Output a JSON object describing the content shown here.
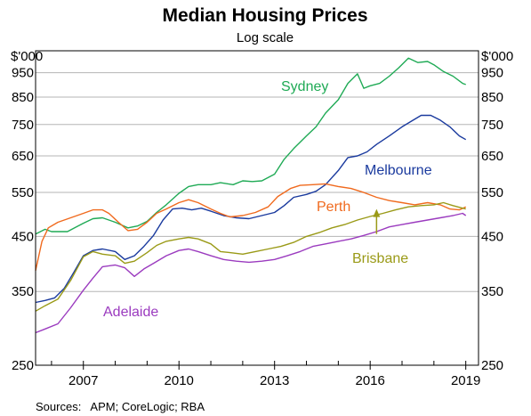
{
  "chart_data": {
    "type": "line",
    "title": "Median Housing Prices",
    "subtitle": "Log scale",
    "y_unit": "$'000",
    "y_scale": "log",
    "ylim": [
      250,
      1050
    ],
    "xlim": [
      2005.5,
      2019.4
    ],
    "y_ticks": [
      {
        "label": "950",
        "value": 950
      },
      {
        "label": "850",
        "value": 850
      },
      {
        "label": "750",
        "value": 750
      },
      {
        "label": "650",
        "value": 650
      },
      {
        "label": "550",
        "value": 550
      },
      {
        "label": "450",
        "value": 450
      },
      {
        "label": "350",
        "value": 350
      },
      {
        "label": "250",
        "value": 250
      }
    ],
    "x_tick_labels": [
      {
        "label": "2007",
        "value": 2007
      },
      {
        "label": "2010",
        "value": 2010
      },
      {
        "label": "2013",
        "value": 2013
      },
      {
        "label": "2016",
        "value": 2016
      },
      {
        "label": "2019",
        "value": 2019
      }
    ],
    "x_minor_ticks": [
      2006,
      2007,
      2008,
      2009,
      2010,
      2011,
      2012,
      2013,
      2014,
      2015,
      2016,
      2017,
      2018,
      2019
    ],
    "grid": true,
    "series": [
      {
        "name": "Sydney",
        "color": "#1faa55",
        "points": [
          [
            2005.5,
            455
          ],
          [
            2005.8,
            465
          ],
          [
            2006.0,
            460
          ],
          [
            2006.5,
            460
          ],
          [
            2007.0,
            478
          ],
          [
            2007.3,
            488
          ],
          [
            2007.6,
            490
          ],
          [
            2008.0,
            480
          ],
          [
            2008.4,
            468
          ],
          [
            2008.7,
            472
          ],
          [
            2009.0,
            482
          ],
          [
            2009.3,
            502
          ],
          [
            2009.6,
            520
          ],
          [
            2010.0,
            548
          ],
          [
            2010.3,
            565
          ],
          [
            2010.6,
            570
          ],
          [
            2011.0,
            570
          ],
          [
            2011.3,
            575
          ],
          [
            2011.7,
            570
          ],
          [
            2012.0,
            580
          ],
          [
            2012.3,
            578
          ],
          [
            2012.6,
            580
          ],
          [
            2013.0,
            598
          ],
          [
            2013.3,
            640
          ],
          [
            2013.6,
            672
          ],
          [
            2014.0,
            712
          ],
          [
            2014.3,
            742
          ],
          [
            2014.6,
            790
          ],
          [
            2015.0,
            840
          ],
          [
            2015.3,
            905
          ],
          [
            2015.6,
            945
          ],
          [
            2015.8,
            885
          ],
          [
            2016.0,
            895
          ],
          [
            2016.3,
            905
          ],
          [
            2016.6,
            935
          ],
          [
            2016.9,
            972
          ],
          [
            2017.2,
            1015
          ],
          [
            2017.5,
            995
          ],
          [
            2017.8,
            1000
          ],
          [
            2018.0,
            985
          ],
          [
            2018.3,
            955
          ],
          [
            2018.6,
            935
          ],
          [
            2018.9,
            905
          ],
          [
            2019.0,
            900
          ]
        ]
      },
      {
        "name": "Melbourne",
        "color": "#1a3a9e",
        "points": [
          [
            2005.5,
            333
          ],
          [
            2005.8,
            336
          ],
          [
            2006.1,
            340
          ],
          [
            2006.4,
            355
          ],
          [
            2006.7,
            382
          ],
          [
            2007.0,
            412
          ],
          [
            2007.3,
            422
          ],
          [
            2007.6,
            425
          ],
          [
            2008.0,
            420
          ],
          [
            2008.3,
            405
          ],
          [
            2008.6,
            412
          ],
          [
            2008.9,
            430
          ],
          [
            2009.2,
            452
          ],
          [
            2009.5,
            485
          ],
          [
            2009.8,
            510
          ],
          [
            2010.1,
            512
          ],
          [
            2010.4,
            508
          ],
          [
            2010.7,
            512
          ],
          [
            2011.0,
            505
          ],
          [
            2011.4,
            495
          ],
          [
            2011.8,
            490
          ],
          [
            2012.2,
            488
          ],
          [
            2012.6,
            495
          ],
          [
            2013.0,
            502
          ],
          [
            2013.3,
            518
          ],
          [
            2013.6,
            538
          ],
          [
            2014.0,
            545
          ],
          [
            2014.3,
            553
          ],
          [
            2014.6,
            570
          ],
          [
            2015.0,
            608
          ],
          [
            2015.3,
            645
          ],
          [
            2015.6,
            650
          ],
          [
            2015.9,
            662
          ],
          [
            2016.2,
            685
          ],
          [
            2016.6,
            712
          ],
          [
            2017.0,
            742
          ],
          [
            2017.3,
            762
          ],
          [
            2017.6,
            782
          ],
          [
            2017.9,
            782
          ],
          [
            2018.2,
            765
          ],
          [
            2018.5,
            742
          ],
          [
            2018.8,
            712
          ],
          [
            2019.0,
            700
          ]
        ]
      },
      {
        "name": "Perth",
        "color": "#f06a1e",
        "points": [
          [
            2005.5,
            385
          ],
          [
            2005.7,
            440
          ],
          [
            2005.9,
            468
          ],
          [
            2006.2,
            480
          ],
          [
            2006.6,
            490
          ],
          [
            2007.0,
            500
          ],
          [
            2007.3,
            508
          ],
          [
            2007.6,
            508
          ],
          [
            2007.8,
            500
          ],
          [
            2008.1,
            480
          ],
          [
            2008.4,
            462
          ],
          [
            2008.7,
            465
          ],
          [
            2009.0,
            480
          ],
          [
            2009.3,
            500
          ],
          [
            2009.6,
            510
          ],
          [
            2010.0,
            525
          ],
          [
            2010.3,
            532
          ],
          [
            2010.6,
            525
          ],
          [
            2011.0,
            510
          ],
          [
            2011.3,
            500
          ],
          [
            2011.6,
            492
          ],
          [
            2012.0,
            495
          ],
          [
            2012.4,
            502
          ],
          [
            2012.8,
            515
          ],
          [
            2013.1,
            540
          ],
          [
            2013.5,
            560
          ],
          [
            2013.8,
            568
          ],
          [
            2014.2,
            570
          ],
          [
            2014.6,
            572
          ],
          [
            2015.0,
            565
          ],
          [
            2015.4,
            560
          ],
          [
            2015.8,
            550
          ],
          [
            2016.2,
            538
          ],
          [
            2016.6,
            530
          ],
          [
            2017.0,
            525
          ],
          [
            2017.4,
            520
          ],
          [
            2017.8,
            525
          ],
          [
            2018.2,
            520
          ],
          [
            2018.5,
            510
          ],
          [
            2018.8,
            508
          ],
          [
            2019.0,
            515
          ]
        ]
      },
      {
        "name": "Brisbane",
        "color": "#9a9a17",
        "points": [
          [
            2005.5,
            320
          ],
          [
            2005.8,
            328
          ],
          [
            2006.2,
            338
          ],
          [
            2006.6,
            368
          ],
          [
            2007.0,
            410
          ],
          [
            2007.3,
            420
          ],
          [
            2007.6,
            415
          ],
          [
            2008.0,
            412
          ],
          [
            2008.3,
            398
          ],
          [
            2008.6,
            402
          ],
          [
            2009.0,
            418
          ],
          [
            2009.3,
            432
          ],
          [
            2009.6,
            440
          ],
          [
            2010.0,
            445
          ],
          [
            2010.3,
            448
          ],
          [
            2010.6,
            445
          ],
          [
            2011.0,
            435
          ],
          [
            2011.3,
            420
          ],
          [
            2011.6,
            418
          ],
          [
            2012.0,
            415
          ],
          [
            2012.4,
            420
          ],
          [
            2012.8,
            425
          ],
          [
            2013.2,
            430
          ],
          [
            2013.6,
            438
          ],
          [
            2014.0,
            450
          ],
          [
            2014.4,
            458
          ],
          [
            2014.8,
            468
          ],
          [
            2015.2,
            475
          ],
          [
            2015.6,
            485
          ],
          [
            2016.0,
            493
          ],
          [
            2016.4,
            500
          ],
          [
            2016.8,
            508
          ],
          [
            2017.2,
            515
          ],
          [
            2017.6,
            518
          ],
          [
            2018.0,
            520
          ],
          [
            2018.3,
            525
          ],
          [
            2018.6,
            518
          ],
          [
            2018.9,
            512
          ],
          [
            2019.0,
            510
          ]
        ]
      },
      {
        "name": "Adelaide",
        "color": "#9b3bbf",
        "points": [
          [
            2005.5,
            290
          ],
          [
            2005.8,
            295
          ],
          [
            2006.2,
            302
          ],
          [
            2006.6,
            325
          ],
          [
            2007.0,
            352
          ],
          [
            2007.3,
            372
          ],
          [
            2007.6,
            392
          ],
          [
            2008.0,
            395
          ],
          [
            2008.3,
            390
          ],
          [
            2008.6,
            375
          ],
          [
            2008.9,
            388
          ],
          [
            2009.2,
            398
          ],
          [
            2009.6,
            412
          ],
          [
            2010.0,
            422
          ],
          [
            2010.3,
            425
          ],
          [
            2010.6,
            420
          ],
          [
            2011.0,
            412
          ],
          [
            2011.4,
            405
          ],
          [
            2011.8,
            402
          ],
          [
            2012.2,
            400
          ],
          [
            2012.6,
            402
          ],
          [
            2013.0,
            405
          ],
          [
            2013.4,
            412
          ],
          [
            2013.8,
            420
          ],
          [
            2014.2,
            430
          ],
          [
            2014.6,
            435
          ],
          [
            2015.0,
            440
          ],
          [
            2015.4,
            445
          ],
          [
            2015.8,
            452
          ],
          [
            2016.2,
            460
          ],
          [
            2016.6,
            470
          ],
          [
            2017.0,
            475
          ],
          [
            2017.4,
            480
          ],
          [
            2017.8,
            485
          ],
          [
            2018.2,
            490
          ],
          [
            2018.6,
            495
          ],
          [
            2018.9,
            500
          ],
          [
            2019.0,
            495
          ]
        ]
      }
    ],
    "annotation_arrow": {
      "series": "Brisbane",
      "x": 2016.2,
      "y_from": 455,
      "y_to": 510
    },
    "source": "Sources:   APM; CoreLogic; RBA"
  },
  "labels": {
    "sydney": "Sydney",
    "melbourne": "Melbourne",
    "perth": "Perth",
    "brisbane": "Brisbane",
    "adelaide": "Adelaide"
  }
}
